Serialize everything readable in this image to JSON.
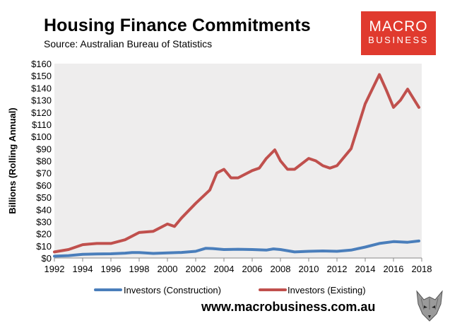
{
  "header": {
    "title": "Housing Finance Commitments",
    "subtitle": "Source: Australian Bureau of Statistics"
  },
  "logo": {
    "line1": "MACRO",
    "line2": "BUSINESS",
    "color": "#e03a2e"
  },
  "footer": {
    "url": "www.macrobusiness.com.au"
  },
  "chart_data": {
    "type": "line",
    "title": "Housing Finance Commitments",
    "xlabel": "",
    "ylabel": "Billions (Rolling Annual)",
    "xlim": [
      1992,
      2018
    ],
    "ylim": [
      0,
      160
    ],
    "x_ticks": [
      "1992",
      "1994",
      "1996",
      "1998",
      "2000",
      "2002",
      "2004",
      "2006",
      "2008",
      "2010",
      "2012",
      "2014",
      "2016",
      "2018"
    ],
    "y_ticks": [
      "$0",
      "$10",
      "$20",
      "$30",
      "$40",
      "$50",
      "$60",
      "$70",
      "$80",
      "$90",
      "$100",
      "$110",
      "$120",
      "$130",
      "$140",
      "$150",
      "$160"
    ],
    "legend_position": "bottom",
    "grid": false,
    "series": [
      {
        "name": "Investors (Construction)",
        "color": "#4a7ebb",
        "x": [
          1992,
          1993,
          1994,
          1995,
          1996,
          1997,
          1997.5,
          1998,
          1999,
          2000,
          2001,
          2002,
          2002.7,
          2003.2,
          2004,
          2005,
          2006,
          2007,
          2007.5,
          2008,
          2009,
          2010,
          2011,
          2012,
          2013,
          2014,
          2015,
          2016,
          2017,
          2017.8
        ],
        "values": [
          1.5,
          2.0,
          3.0,
          3.3,
          3.5,
          4.0,
          4.5,
          4.5,
          3.8,
          4.2,
          4.6,
          5.5,
          8.0,
          7.8,
          7.0,
          7.2,
          7.0,
          6.5,
          7.5,
          7.0,
          5.0,
          5.5,
          5.8,
          5.5,
          6.5,
          9.0,
          12.0,
          13.5,
          13.0,
          14.0
        ]
      },
      {
        "name": "Investors (Existing)",
        "color": "#c0504d",
        "x": [
          1992,
          1993,
          1994,
          1995,
          1996,
          1997,
          1998,
          1999,
          2000,
          2000.5,
          2001,
          2002,
          2003,
          2003.5,
          2004,
          2004.5,
          2005,
          2006,
          2006.5,
          2007,
          2007.6,
          2008,
          2008.5,
          2009,
          2010,
          2010.5,
          2011,
          2011.5,
          2012,
          2013,
          2014,
          2015,
          2015.5,
          2016,
          2016.5,
          2017,
          2017.8
        ],
        "values": [
          5,
          7,
          11,
          12,
          12,
          15,
          21,
          22,
          28,
          26,
          33,
          45,
          56,
          70,
          73,
          66,
          66,
          72,
          74,
          82,
          89,
          80,
          73,
          73,
          82,
          80,
          76,
          74,
          76,
          90,
          127,
          151,
          138,
          124,
          130,
          139,
          124
        ]
      }
    ]
  }
}
